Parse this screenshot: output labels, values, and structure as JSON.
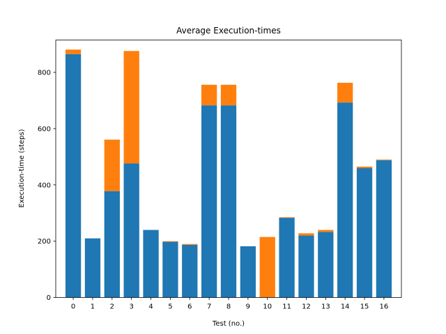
{
  "chart_data": {
    "type": "bar",
    "stacked": true,
    "title": "Average Execution-times",
    "xlabel": "Test (no.)",
    "ylabel": "Execution-time (steps)",
    "categories": [
      "0",
      "1",
      "2",
      "3",
      "4",
      "5",
      "6",
      "7",
      "8",
      "9",
      "10",
      "11",
      "12",
      "13",
      "14",
      "15",
      "16"
    ],
    "ylim": [
      0,
      915
    ],
    "yticks": [
      0,
      200,
      400,
      600,
      800
    ],
    "grid": false,
    "legend": "none",
    "series": [
      {
        "color": "#1f77b4",
        "values": [
          865,
          210,
          378,
          476,
          240,
          198,
          187,
          683,
          683,
          182,
          0,
          283,
          220,
          233,
          693,
          460,
          488
        ]
      },
      {
        "color": "#ff7f0e",
        "values": [
          16,
          0,
          183,
          400,
          0,
          2,
          3,
          73,
          73,
          0,
          215,
          2,
          8,
          7,
          70,
          5,
          2
        ]
      }
    ]
  }
}
